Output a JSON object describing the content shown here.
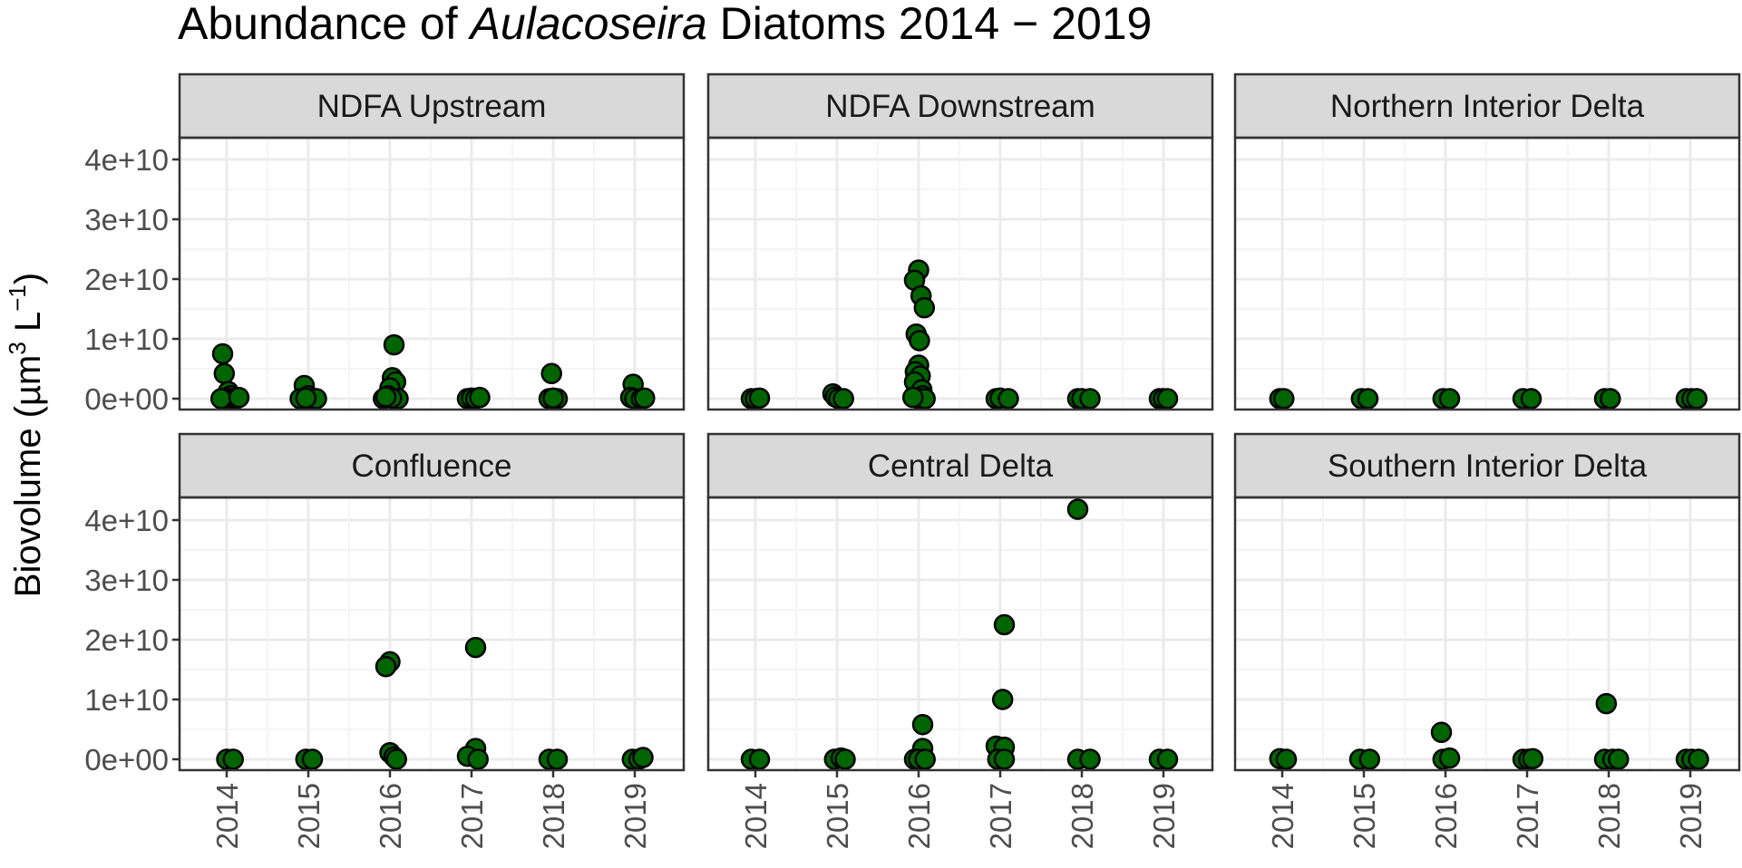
{
  "chart_data": {
    "type": "scatter",
    "title": {
      "prefix": "Abundance of ",
      "italic": "Aulacoseira",
      "suffix": " Diatoms 2014 − 2019"
    },
    "ylabel": {
      "main": "Biovolume",
      "unit_base": "µm",
      "unit_sup": "3",
      "unit_mid": " L",
      "unit_sup2": "−1"
    },
    "x_ticks": [
      "2014",
      "2015",
      "2016",
      "2017",
      "2018",
      "2019"
    ],
    "y_ticks": [
      "0e+00",
      "1e+10",
      "2e+10",
      "3e+10",
      "4e+10"
    ],
    "ylim": [
      0,
      45000000000.0
    ],
    "xlim": [
      2013.45,
      2019.7
    ],
    "grid": true,
    "point_color": "#006400",
    "point_stroke": "#000000",
    "panels": [
      {
        "name": "NDFA Upstream",
        "points": [
          [
            2013.95,
            7500000000.0
          ],
          [
            2013.97,
            4200000000.0
          ],
          [
            2014.02,
            1200000000.0
          ],
          [
            2014.05,
            500000000.0
          ],
          [
            2014.0,
            100000000.0
          ],
          [
            2014.08,
            0
          ],
          [
            2014.12,
            0
          ],
          [
            2013.93,
            0
          ],
          [
            2014.15,
            200000000.0
          ],
          [
            2014.95,
            2200000000.0
          ],
          [
            2015.0,
            500000000.0
          ],
          [
            2014.9,
            0
          ],
          [
            2015.05,
            0
          ],
          [
            2015.1,
            0
          ],
          [
            2014.97,
            100000000.0
          ],
          [
            2016.05,
            9000000000.0
          ],
          [
            2016.03,
            3500000000.0
          ],
          [
            2016.07,
            2800000000.0
          ],
          [
            2016.0,
            1800000000.0
          ],
          [
            2015.98,
            500000000.0
          ],
          [
            2015.92,
            0
          ],
          [
            2016.1,
            0
          ],
          [
            2016.02,
            100000000.0
          ],
          [
            2015.95,
            300000000.0
          ],
          [
            2016.95,
            0
          ],
          [
            2017.0,
            100000000.0
          ],
          [
            2017.05,
            0
          ],
          [
            2017.1,
            200000000.0
          ],
          [
            2017.98,
            4200000000.0
          ],
          [
            2017.95,
            0
          ],
          [
            2018.05,
            0
          ],
          [
            2018.0,
            100000000.0
          ],
          [
            2018.98,
            2400000000.0
          ],
          [
            2018.95,
            200000000.0
          ],
          [
            2019.0,
            0
          ],
          [
            2019.08,
            0
          ],
          [
            2019.12,
            100000000.0
          ]
        ]
      },
      {
        "name": "NDFA Downstream",
        "points": [
          [
            2013.95,
            0
          ],
          [
            2014.0,
            0
          ],
          [
            2014.05,
            100000000.0
          ],
          [
            2014.95,
            800000000.0
          ],
          [
            2014.98,
            300000000.0
          ],
          [
            2015.02,
            0
          ],
          [
            2015.08,
            0
          ],
          [
            2016.0,
            21500000000.0
          ],
          [
            2015.95,
            19800000000.0
          ],
          [
            2016.03,
            17200000000.0
          ],
          [
            2016.07,
            15200000000.0
          ],
          [
            2015.97,
            10800000000.0
          ],
          [
            2016.01,
            9700000000.0
          ],
          [
            2016.0,
            5600000000.0
          ],
          [
            2015.96,
            4500000000.0
          ],
          [
            2016.02,
            3800000000.0
          ],
          [
            2015.95,
            2800000000.0
          ],
          [
            2016.04,
            1500000000.0
          ],
          [
            2016.05,
            500000000.0
          ],
          [
            2016.0,
            0
          ],
          [
            2016.08,
            0
          ],
          [
            2015.93,
            200000000.0
          ],
          [
            2016.95,
            0
          ],
          [
            2017.0,
            100000000.0
          ],
          [
            2017.1,
            0
          ],
          [
            2017.95,
            0
          ],
          [
            2018.0,
            0
          ],
          [
            2018.1,
            0
          ],
          [
            2018.95,
            0
          ],
          [
            2019.0,
            0
          ],
          [
            2019.05,
            0
          ]
        ]
      },
      {
        "name": "Northern Interior Delta",
        "points": [
          [
            2013.97,
            0
          ],
          [
            2014.02,
            0
          ],
          [
            2014.97,
            0
          ],
          [
            2015.05,
            0
          ],
          [
            2015.97,
            0
          ],
          [
            2016.05,
            0
          ],
          [
            2016.95,
            0
          ],
          [
            2017.05,
            0
          ],
          [
            2017.95,
            0
          ],
          [
            2018.02,
            0
          ],
          [
            2018.95,
            0
          ],
          [
            2019.02,
            0
          ],
          [
            2019.08,
            0
          ]
        ]
      },
      {
        "name": "Confluence",
        "points": [
          [
            2014.0,
            0
          ],
          [
            2014.08,
            0
          ],
          [
            2014.97,
            0
          ],
          [
            2015.05,
            0
          ],
          [
            2016.0,
            16300000000.0
          ],
          [
            2015.95,
            15500000000.0
          ],
          [
            2016.0,
            1100000000.0
          ],
          [
            2016.05,
            400000000.0
          ],
          [
            2016.08,
            0
          ],
          [
            2017.05,
            18700000000.0
          ],
          [
            2017.05,
            1800000000.0
          ],
          [
            2016.95,
            500000000.0
          ],
          [
            2017.08,
            0
          ],
          [
            2017.95,
            0
          ],
          [
            2018.05,
            0
          ],
          [
            2018.97,
            0
          ],
          [
            2019.05,
            0
          ],
          [
            2019.1,
            300000000.0
          ]
        ]
      },
      {
        "name": "Central Delta",
        "points": [
          [
            2013.95,
            0
          ],
          [
            2014.05,
            0
          ],
          [
            2014.97,
            0
          ],
          [
            2015.05,
            200000000.0
          ],
          [
            2015.1,
            0
          ],
          [
            2016.05,
            5800000000.0
          ],
          [
            2016.05,
            1800000000.0
          ],
          [
            2015.95,
            0
          ],
          [
            2016.0,
            0
          ],
          [
            2016.08,
            0
          ],
          [
            2017.05,
            22500000000.0
          ],
          [
            2017.03,
            10000000000.0
          ],
          [
            2016.95,
            2200000000.0
          ],
          [
            2017.05,
            2000000000.0
          ],
          [
            2016.97,
            0
          ],
          [
            2017.05,
            0
          ],
          [
            2017.95,
            41800000000.0
          ],
          [
            2017.95,
            0
          ],
          [
            2018.1,
            0
          ],
          [
            2018.95,
            0
          ],
          [
            2019.05,
            0
          ]
        ]
      },
      {
        "name": "Southern Interior Delta",
        "points": [
          [
            2013.97,
            100000000.0
          ],
          [
            2014.05,
            0
          ],
          [
            2014.95,
            0
          ],
          [
            2015.07,
            0
          ],
          [
            2015.95,
            4500000000.0
          ],
          [
            2015.97,
            0
          ],
          [
            2016.05,
            200000000.0
          ],
          [
            2016.95,
            0
          ],
          [
            2017.02,
            0
          ],
          [
            2017.07,
            100000000.0
          ],
          [
            2017.97,
            9300000000.0
          ],
          [
            2017.95,
            0
          ],
          [
            2018.05,
            0
          ],
          [
            2018.12,
            0
          ],
          [
            2018.95,
            0
          ],
          [
            2019.02,
            0
          ],
          [
            2019.1,
            0
          ]
        ]
      }
    ]
  }
}
